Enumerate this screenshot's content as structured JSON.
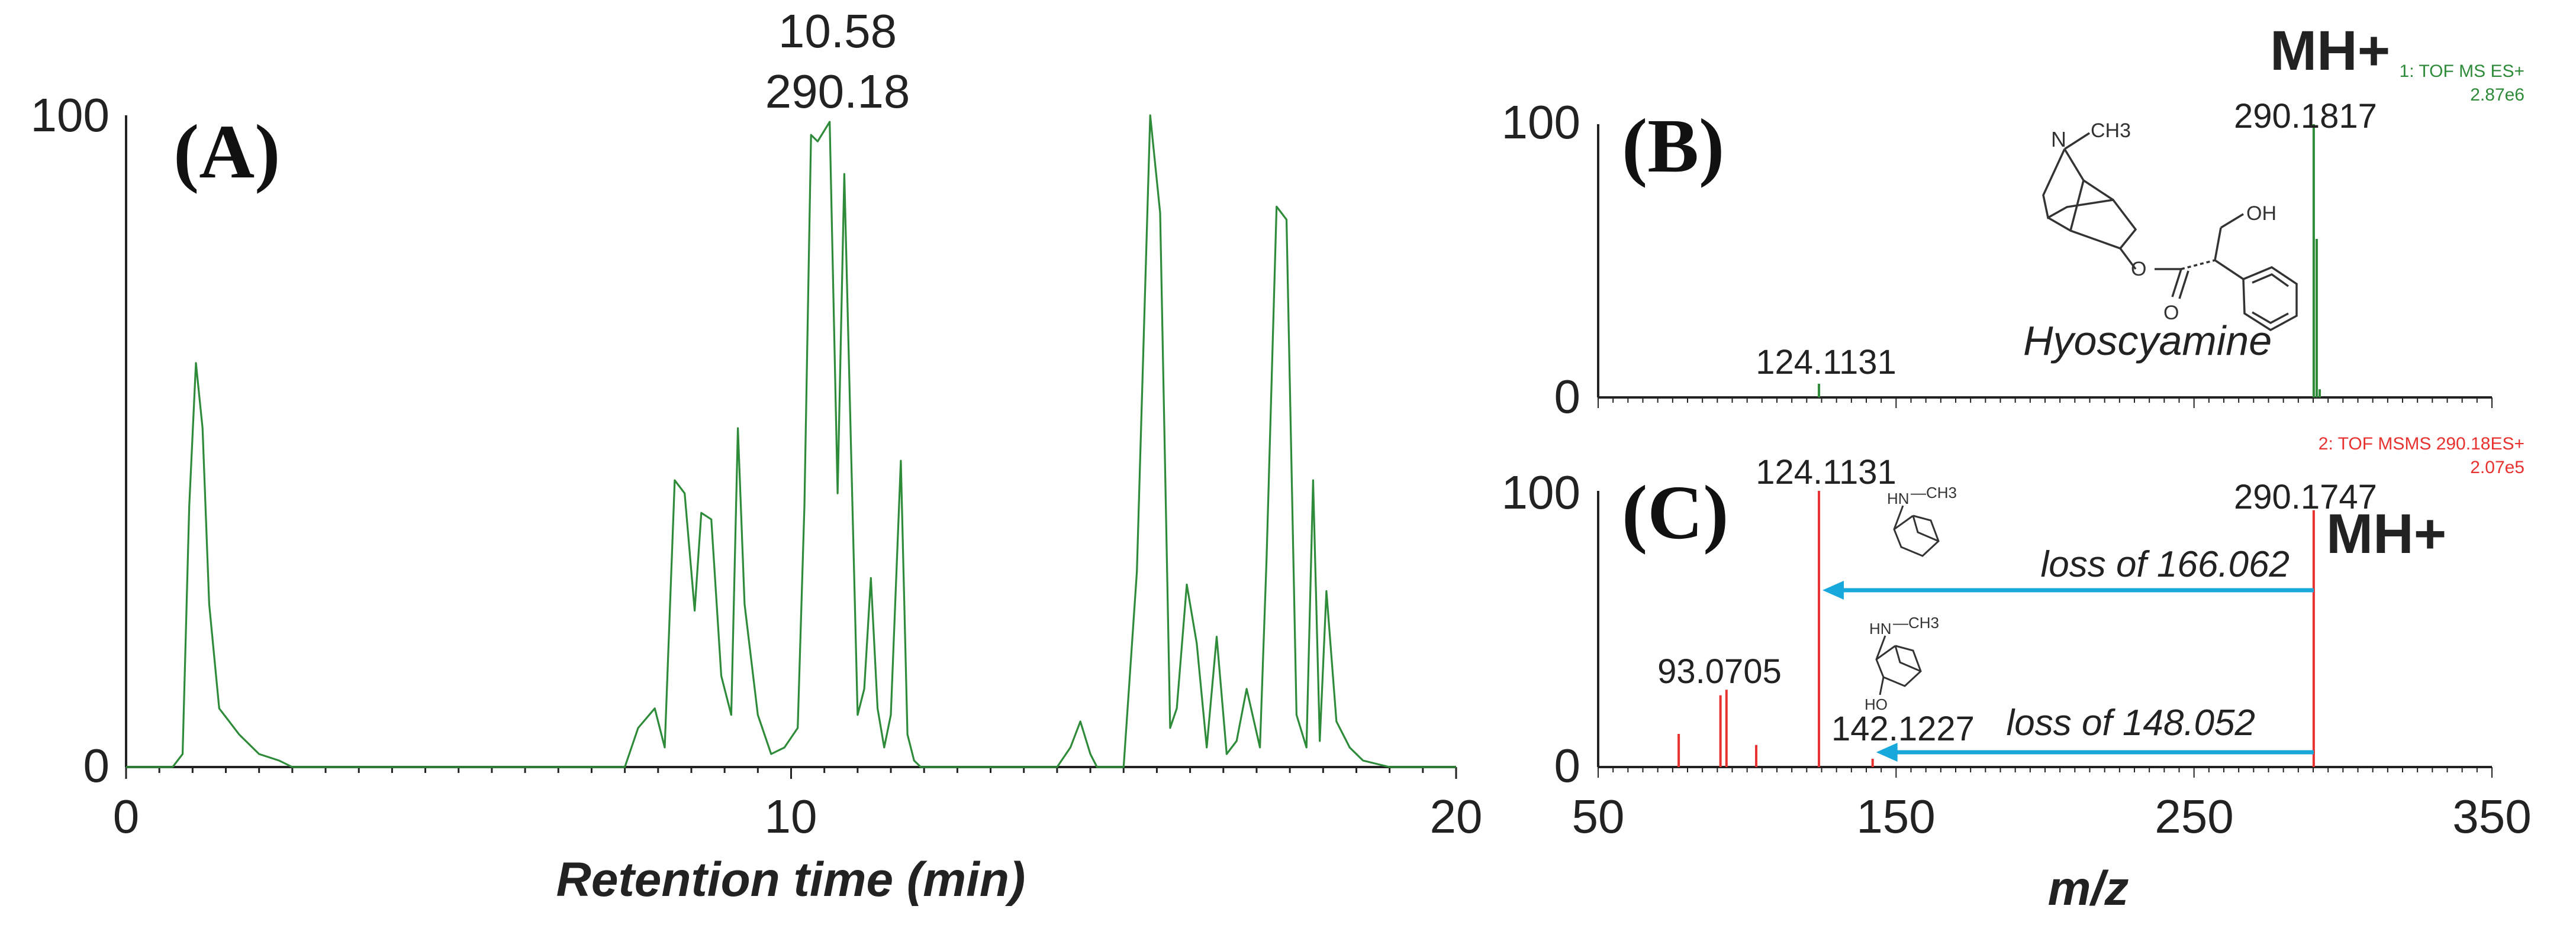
{
  "panel_labels": {
    "a": "(A)",
    "b": "(B)",
    "c": "(C)"
  },
  "colors": {
    "green": "#2e8b3a",
    "red": "#e8322f",
    "arrow": "#19a8dc",
    "axis": "#222222",
    "header_green": "#2e8b3a",
    "header_red": "#e8322f"
  },
  "chart_data": [
    {
      "id": "A",
      "type": "line",
      "title": "",
      "xlabel": "Retention time (min)",
      "ylabel": "",
      "xlim": [
        0,
        20
      ],
      "ylim": [
        0,
        100
      ],
      "xticks": [
        0,
        10,
        20
      ],
      "yticks": [
        0,
        100
      ],
      "peak_annotation": {
        "rt": "10.58",
        "mz": "290.18",
        "x": 10.58
      },
      "series": [
        {
          "name": "chromatogram",
          "color": "#2e8b3a",
          "x": [
            0,
            0.7,
            0.85,
            0.95,
            1.05,
            1.15,
            1.25,
            1.4,
            1.7,
            2.0,
            2.3,
            2.5,
            4.0,
            6.0,
            7.5,
            7.7,
            7.95,
            8.1,
            8.25,
            8.4,
            8.55,
            8.65,
            8.8,
            8.95,
            9.1,
            9.2,
            9.3,
            9.5,
            9.7,
            9.9,
            10.1,
            10.2,
            10.3,
            10.4,
            10.58,
            10.7,
            10.8,
            10.92,
            11.0,
            11.1,
            11.2,
            11.3,
            11.4,
            11.5,
            11.65,
            11.75,
            11.85,
            11.95,
            12.2,
            13.0,
            14.0,
            14.2,
            14.35,
            14.5,
            14.6,
            15.0,
            15.2,
            15.4,
            15.55,
            15.7,
            15.8,
            15.95,
            16.1,
            16.25,
            16.4,
            16.55,
            16.7,
            16.85,
            17.05,
            17.15,
            17.3,
            17.45,
            17.6,
            17.75,
            17.85,
            17.95,
            18.05,
            18.2,
            18.4,
            18.6,
            19.0,
            19.5,
            20.0
          ],
          "y": [
            0,
            0,
            2,
            40,
            62,
            52,
            25,
            9,
            5,
            2,
            1,
            0,
            0,
            0,
            0,
            6,
            9,
            3,
            44,
            42,
            24,
            39,
            38,
            14,
            8,
            52,
            25,
            8,
            2,
            3,
            6,
            40,
            97,
            96,
            99,
            42,
            91,
            41,
            8,
            12,
            29,
            9,
            3,
            8,
            47,
            5,
            1,
            0,
            0,
            0,
            0,
            3,
            7,
            2,
            0,
            0,
            30,
            100,
            85,
            6,
            9,
            28,
            19,
            3,
            20,
            2,
            4,
            12,
            3,
            32,
            86,
            84,
            8,
            3,
            44,
            4,
            27,
            7,
            3,
            1,
            0,
            0,
            0
          ]
        }
      ]
    },
    {
      "id": "B",
      "type": "bar",
      "title": "",
      "header_line1": "1: TOF MS ES+",
      "header_line2": "2.87e6",
      "xlabel": "m/z",
      "ylabel": "",
      "xlim": [
        50,
        350
      ],
      "ylim": [
        0,
        100
      ],
      "yticks": [
        0,
        100
      ],
      "compound_name": "Hyoscyamine",
      "mh_label": "MH+",
      "labeled_peaks": [
        {
          "mz": 124.1131,
          "label": "124.1131"
        },
        {
          "mz": 290.1817,
          "label": "290.1817"
        }
      ],
      "series": [
        {
          "name": "TOF MS ES+",
          "color": "#2e8b3a",
          "x": [
            124.1131,
            290.1817,
            291.18,
            292.18
          ],
          "y": [
            5,
            100,
            58,
            3
          ]
        }
      ]
    },
    {
      "id": "C",
      "type": "bar",
      "title": "",
      "header_line1": "2: TOF MSMS 290.18ES+",
      "header_line2": "2.07e5",
      "xlabel": "m/z",
      "ylabel": "",
      "xlim": [
        50,
        350
      ],
      "ylim": [
        0,
        100
      ],
      "xticks": [
        50,
        150,
        250,
        350
      ],
      "yticks": [
        0,
        100
      ],
      "mh_label": "MH+",
      "losses": [
        {
          "from": 290.1747,
          "to": 124.1131,
          "label": "loss of 166.062"
        },
        {
          "from": 290.1747,
          "to": 142.1227,
          "label": "loss of 148.052"
        }
      ],
      "labeled_peaks": [
        {
          "mz": 93.0705,
          "label": "93.0705"
        },
        {
          "mz": 124.1131,
          "label": "124.1131"
        },
        {
          "mz": 142.1227,
          "label": "142.1227"
        },
        {
          "mz": 290.1747,
          "label": "290.1747"
        }
      ],
      "series": [
        {
          "name": "TOF MSMS 290.18ES+",
          "color": "#e8322f",
          "x": [
            77.04,
            91.05,
            93.0705,
            103.05,
            124.1131,
            142.1227,
            290.1747
          ],
          "y": [
            12,
            26,
            28,
            8,
            100,
            3,
            93
          ]
        }
      ]
    }
  ]
}
